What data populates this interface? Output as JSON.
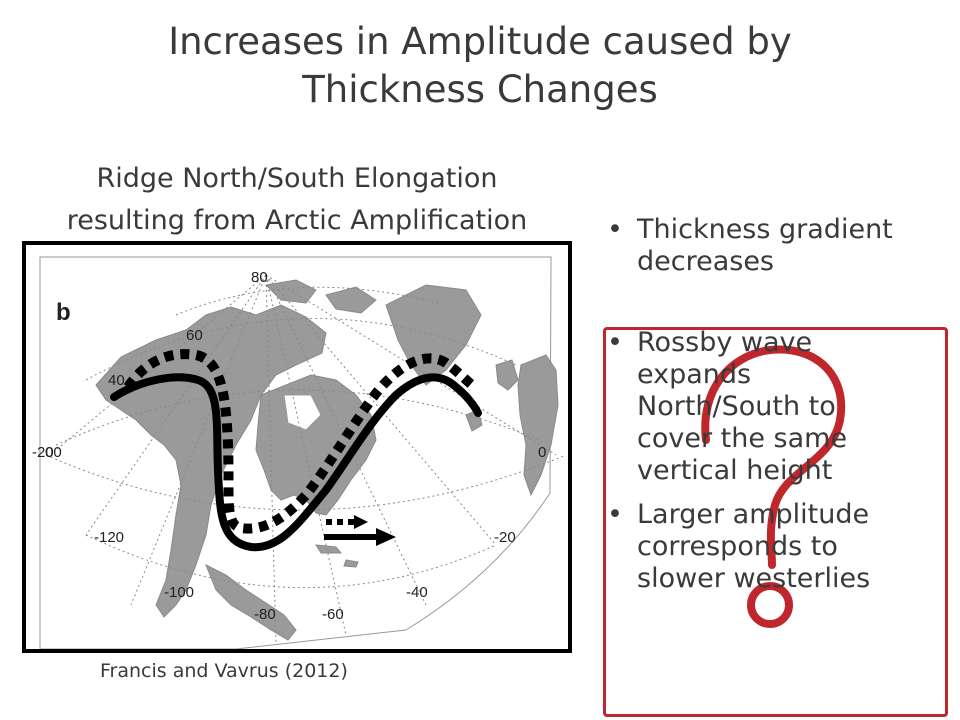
{
  "slide": {
    "title_line1": "Increases in Amplitude caused by",
    "title_line2": "Thickness Changes",
    "subtitle_line1": "Ridge North/South Elongation",
    "subtitle_line2": "resulting from Arctic Amplification",
    "citation": "Francis and Vavrus (2012)",
    "bullets": [
      {
        "line1": "Thickness gradient",
        "line2": "decreases"
      },
      {
        "line1": "Rossby wave",
        "line2": "expands",
        "line3": "North/South to",
        "line4": "cover the same",
        "line5": "vertical height"
      },
      {
        "line1": "Larger amplitude",
        "line2": "corresponds to",
        "line3": "slower westerlies"
      }
    ],
    "bullet_glyph": "•",
    "question_mark_color": "#c0272d"
  },
  "map": {
    "panel_label": "b",
    "labels": {
      "lat80": "80",
      "lat60": "60",
      "lat40": "40",
      "lon0": "0",
      "lon_m20": "-20",
      "lon_m20b": "-20",
      "lon_m40": "-40",
      "lon_m60": "-60",
      "lon_m80": "-80",
      "lon_m100": "-100",
      "lon_m120": "-120",
      "lon_left_a": "-20",
      "lon_left_b": "00"
    }
  }
}
